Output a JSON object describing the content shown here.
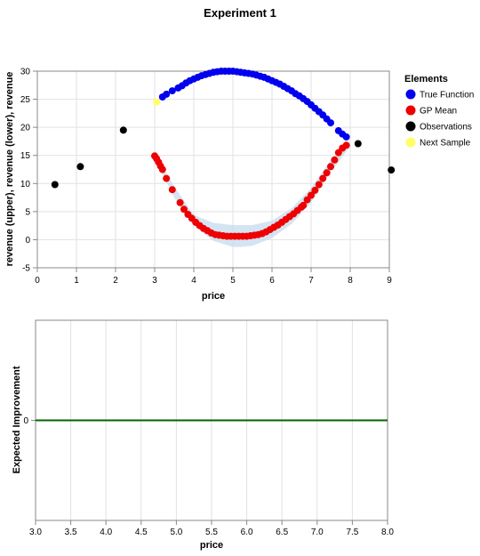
{
  "chart_data": [
    {
      "type": "scatter",
      "title": "Experiment 1",
      "xlabel": "price",
      "ylabel": "revenue (upper), revenue (lower), revenue",
      "xlim": [
        0,
        9
      ],
      "ylim": [
        -5,
        30
      ],
      "x_ticks": [
        0,
        1,
        2,
        3,
        4,
        5,
        6,
        7,
        8,
        9
      ],
      "y_ticks": [
        -5,
        0,
        5,
        10,
        15,
        20,
        25,
        30
      ],
      "grid": true,
      "legend": {
        "title": "Elements",
        "placement": "right",
        "entries": [
          {
            "label": "True Function",
            "color": "#0000ee"
          },
          {
            "label": "GP Mean",
            "color": "#ee0000"
          },
          {
            "label": "Observations",
            "color": "#000000"
          },
          {
            "label": "Next Sample",
            "color": "#ffff66"
          }
        ]
      },
      "colors": {
        "band": "#c6dbef",
        "true_function": "#0000ee",
        "gp_mean": "#ee0000",
        "observations": "#000000",
        "next_sample": "#ffff66"
      },
      "series": [
        {
          "name": "True Function",
          "x": [
            3.2,
            3.3,
            3.45,
            3.6,
            3.7,
            3.8,
            3.9,
            4.0,
            4.1,
            4.2,
            4.3,
            4.4,
            4.5,
            4.6,
            4.7,
            4.8,
            4.9,
            5.0,
            5.1,
            5.2,
            5.3,
            5.4,
            5.5,
            5.6,
            5.7,
            5.8,
            5.9,
            6.0,
            6.1,
            6.2,
            6.3,
            6.4,
            6.5,
            6.6,
            6.7,
            6.8,
            6.9,
            7.0,
            7.1,
            7.2,
            7.3,
            7.4,
            7.5,
            7.7,
            7.8,
            7.9
          ],
          "y": [
            25.4,
            25.9,
            26.5,
            27.0,
            27.4,
            27.9,
            28.3,
            28.6,
            28.9,
            29.2,
            29.4,
            29.6,
            29.8,
            29.9,
            30.0,
            30.0,
            30.0,
            30.0,
            29.9,
            29.8,
            29.7,
            29.6,
            29.5,
            29.3,
            29.1,
            28.9,
            28.6,
            28.3,
            28.0,
            27.7,
            27.3,
            26.9,
            26.5,
            26.0,
            25.6,
            25.1,
            24.6,
            24.0,
            23.4,
            22.8,
            22.2,
            21.5,
            20.8,
            19.4,
            18.8,
            18.3
          ]
        },
        {
          "name": "GP Mean",
          "x": [
            3.0,
            3.05,
            3.1,
            3.15,
            3.2,
            3.3,
            3.45,
            3.65,
            3.75,
            3.85,
            3.95,
            4.05,
            4.15,
            4.25,
            4.35,
            4.45,
            4.55,
            4.65,
            4.75,
            4.85,
            4.95,
            5.05,
            5.15,
            5.25,
            5.35,
            5.45,
            5.55,
            5.65,
            5.75,
            5.85,
            5.95,
            6.05,
            6.15,
            6.25,
            6.35,
            6.45,
            6.55,
            6.65,
            6.75,
            6.8,
            6.9,
            7.0,
            7.1,
            7.2,
            7.3,
            7.4,
            7.5,
            7.6,
            7.7,
            7.8,
            7.9
          ],
          "y": [
            14.9,
            14.4,
            13.8,
            13.1,
            12.5,
            10.9,
            8.9,
            6.6,
            5.4,
            4.5,
            3.8,
            3.1,
            2.5,
            2.0,
            1.6,
            1.2,
            0.9,
            0.8,
            0.7,
            0.6,
            0.6,
            0.6,
            0.6,
            0.6,
            0.6,
            0.7,
            0.8,
            0.9,
            1.1,
            1.4,
            1.8,
            2.2,
            2.6,
            3.1,
            3.6,
            4.1,
            4.6,
            5.2,
            5.8,
            6.1,
            7.1,
            7.9,
            8.8,
            9.8,
            10.9,
            11.9,
            13.0,
            14.2,
            15.5,
            16.3,
            16.8
          ]
        },
        {
          "name": "Observations",
          "x": [
            0.45,
            1.1,
            2.2,
            8.2,
            9.05
          ],
          "y": [
            9.8,
            13.0,
            19.5,
            17.1,
            12.4
          ]
        },
        {
          "name": "Next Sample",
          "x": [
            3.05
          ],
          "y": [
            24.5
          ]
        }
      ],
      "confidence_band": {
        "x": [
          3.0,
          3.5,
          4.0,
          4.5,
          5.0,
          5.2,
          5.5,
          6.0,
          6.5,
          7.0,
          7.5,
          8.0
        ],
        "lower": [
          14.5,
          7.5,
          2.5,
          -0.2,
          -1.3,
          -1.3,
          -1.1,
          0.3,
          2.8,
          6.6,
          12.0,
          16.6
        ],
        "upper": [
          15.3,
          9.5,
          4.4,
          3.0,
          2.6,
          2.6,
          2.6,
          3.4,
          5.6,
          9.2,
          14.2,
          17.3
        ]
      }
    },
    {
      "type": "line",
      "xlabel": "price",
      "ylabel": "Expected Improvement",
      "xlim": [
        3.0,
        8.0
      ],
      "ylim": [
        -1,
        1
      ],
      "x_ticks": [
        "3.0",
        "3.5",
        "4.0",
        "4.5",
        "5.0",
        "5.5",
        "6.0",
        "6.5",
        "7.0",
        "7.5",
        "8.0"
      ],
      "y_ticks": [
        0
      ],
      "grid": true,
      "colors": {
        "line": "#006400"
      },
      "series": [
        {
          "x": [
            3.0,
            8.0
          ],
          "y": [
            0,
            0
          ]
        }
      ]
    }
  ]
}
